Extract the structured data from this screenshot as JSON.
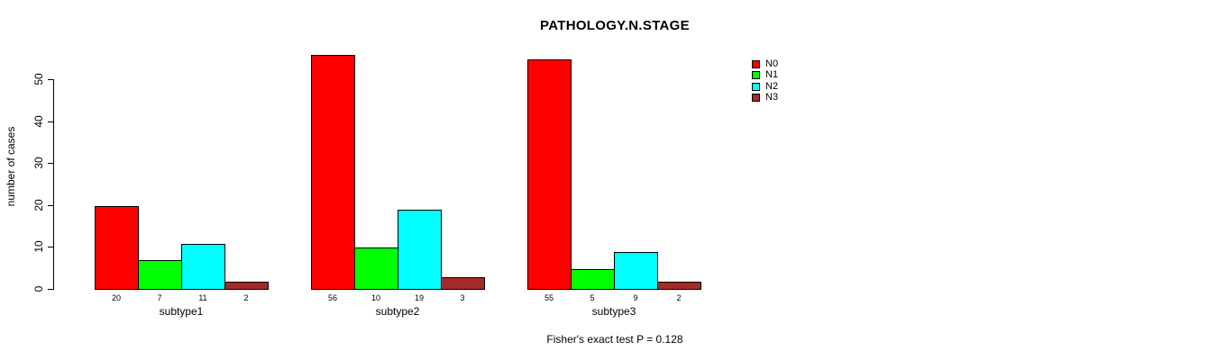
{
  "chart_data": {
    "type": "bar",
    "title": "PATHOLOGY.N.STAGE",
    "ylabel": "number of cases",
    "xlabel": "",
    "categories": [
      "subtype1",
      "subtype2",
      "subtype3"
    ],
    "series": [
      {
        "name": "N0",
        "color": "#ff0000",
        "values": [
          20,
          56,
          55
        ]
      },
      {
        "name": "N1",
        "color": "#00ff00",
        "values": [
          7,
          10,
          5
        ]
      },
      {
        "name": "N2",
        "color": "#00ffff",
        "values": [
          11,
          19,
          9
        ]
      },
      {
        "name": "N3",
        "color": "#a52a2a",
        "values": [
          2,
          3,
          2
        ]
      }
    ],
    "bar_value_labels": [
      [
        20,
        7,
        11,
        2
      ],
      [
        56,
        10,
        19,
        3
      ],
      [
        55,
        5,
        9,
        2
      ]
    ],
    "y_ticks": [
      0,
      10,
      20,
      30,
      40,
      50
    ],
    "ylim": [
      0,
      50
    ],
    "grid": false,
    "legend_position": "top-right",
    "annotation": "Fisher's exact test P = 0.128"
  }
}
